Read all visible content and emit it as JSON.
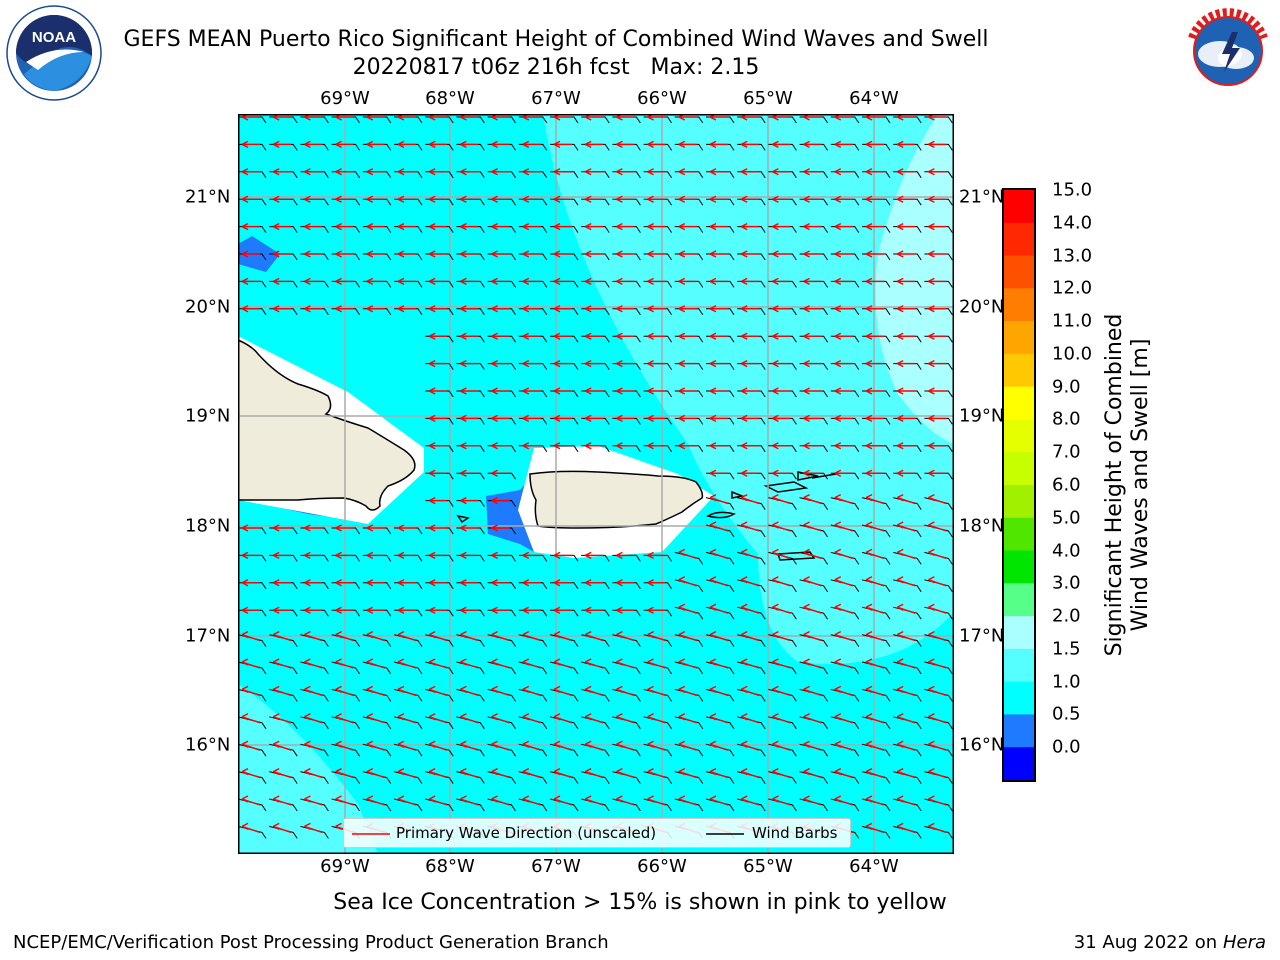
{
  "title": {
    "line1": "GEFS MEAN Puerto Rico Significant Height of Combined Wind Waves and Swell",
    "line2": "20220817 t06z 216h fcst   Max: 2.15"
  },
  "logos": {
    "left": {
      "icon": "noaa-logo-icon",
      "text": "NOAA",
      "ring_text": "NATIONAL OCEANIC AND ATMOSPHERIC ADMINISTRATION · U.S. DEPARTMENT OF COMMERCE"
    },
    "right": {
      "icon": "nws-logo-icon",
      "ring_text": "NATIONAL WEATHER SERVICE"
    }
  },
  "map": {
    "lon_labels": [
      "69°W",
      "68°W",
      "67°W",
      "66°W",
      "65°W",
      "64°W"
    ],
    "lat_labels": [
      "21°N",
      "20°N",
      "19°N",
      "18°N",
      "17°N",
      "16°N"
    ],
    "legend": {
      "wave_direction": "Primary Wave Direction (unscaled)",
      "wind_barbs": "Wind Barbs"
    },
    "colors": {
      "sea_1_0_1_5": "#00ffff",
      "sea_1_5_2_0": "#55ffff",
      "sea_2_0_3_0": "#aaffff",
      "sea_0_5_1_0": "#1e7bff",
      "land": "#efecdc",
      "wave_arrow": "#ff0000",
      "wind_barb": "#000000"
    }
  },
  "colorbar": {
    "ticks": [
      "15.0",
      "14.0",
      "13.0",
      "12.0",
      "11.0",
      "10.0",
      "9.0",
      "8.0",
      "7.0",
      "6.0",
      "5.0",
      "4.0",
      "3.0",
      "2.0",
      "1.5",
      "1.0",
      "0.5",
      "0.0"
    ],
    "colors_top_to_bottom": [
      "#ff0000",
      "#ff2800",
      "#ff5000",
      "#ff7d00",
      "#ffa500",
      "#ffc800",
      "#ffff00",
      "#e6ff00",
      "#c8ff00",
      "#a0f000",
      "#50e600",
      "#00e600",
      "#55ff88",
      "#aaffff",
      "#55ffff",
      "#00ffff",
      "#1e7bff",
      "#0000ff"
    ],
    "label_line1": "Significant Height of Combined",
    "label_line2": "Wind Waves and Swell [m]"
  },
  "footer": {
    "sea_ice_note": "Sea Ice Concentration > 15% is shown in pink to yellow",
    "credit": "NCEP/EMC/Verification Post Processing Product Generation Branch",
    "date": "31 Aug 2022 on",
    "host": "Hera"
  }
}
